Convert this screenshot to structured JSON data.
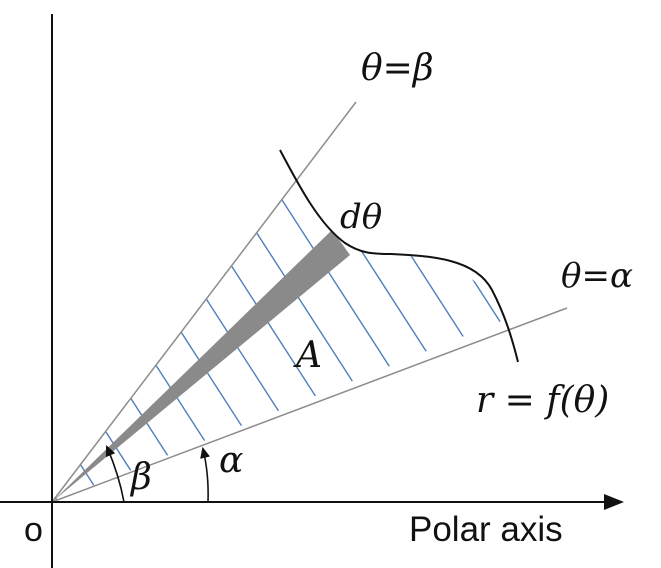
{
  "labels": {
    "theta_beta": "θ=β",
    "theta_alpha": "θ=α",
    "d_theta": "dθ",
    "area": "A",
    "curve": "r = f(θ)",
    "beta": "β",
    "alpha": "α",
    "origin": "o",
    "polar_axis": "Polar axis"
  },
  "colors": {
    "axis": "#111111",
    "ray": "#8c8c8c",
    "hatch": "#4f7fbf",
    "sector": "#8a8a8a",
    "curve": "#111111"
  }
}
